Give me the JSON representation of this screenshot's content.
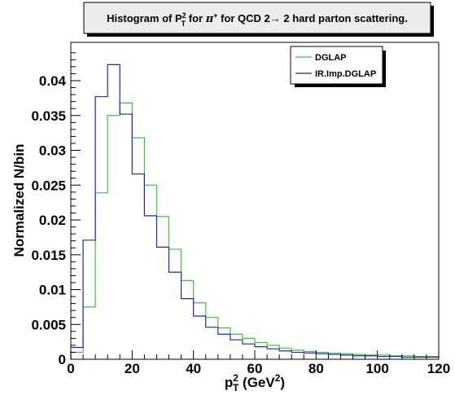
{
  "chart_data": {
    "type": "histogram",
    "title": {
      "prefix": "Histogram of P",
      "sup": "2",
      "sub": "T",
      "middle": " for ",
      "particle": "π",
      "particle_sup": "+",
      "suffix": " for QCD 2→ 2 hard parton scattering."
    },
    "xlabel": {
      "base": "p",
      "sup": "2",
      "sub": "T",
      "units": " (GeV",
      "units_sup": "2",
      "units_close": ")"
    },
    "ylabel": "Normalized N/bin",
    "xlim": [
      0,
      120
    ],
    "ylim": [
      0,
      0.0455
    ],
    "x_ticks": [
      "0",
      "20",
      "40",
      "60",
      "80",
      "100",
      "120"
    ],
    "x_tick_values": [
      0,
      20,
      40,
      60,
      80,
      100,
      120
    ],
    "y_ticks": [
      "0",
      "0.005",
      "0.01",
      "0.015",
      "0.02",
      "0.025",
      "0.03",
      "0.035",
      "0.04"
    ],
    "y_tick_values": [
      0,
      0.005,
      0.01,
      0.015,
      0.02,
      0.025,
      0.03,
      0.035,
      0.04
    ],
    "bin_edges": [
      0,
      4,
      8,
      12,
      16,
      20,
      24,
      28,
      32,
      36,
      40,
      44,
      48,
      52,
      56,
      60,
      64,
      68,
      72,
      76,
      80,
      84,
      88,
      92,
      96,
      100,
      104,
      108,
      112,
      116,
      120
    ],
    "series": [
      {
        "name": "DGLAP",
        "color": "#33cc33",
        "values": [
          0.001,
          0.0075,
          0.0239,
          0.035,
          0.0368,
          0.0318,
          0.025,
          0.0205,
          0.0158,
          0.0113,
          0.0081,
          0.006,
          0.0045,
          0.0036,
          0.003,
          0.0024,
          0.002,
          0.0016,
          0.0013,
          0.0011,
          0.001,
          0.0009,
          0.0008,
          0.0007,
          0.0006,
          0.0006,
          0.0005,
          0.0005,
          0.0004,
          0.0004
        ]
      },
      {
        "name": "IR.Imp.DGLAP",
        "color": "#2222cc",
        "values": [
          0.0017,
          0.0171,
          0.0377,
          0.0423,
          0.0352,
          0.0266,
          0.0206,
          0.0161,
          0.0125,
          0.0087,
          0.0062,
          0.0046,
          0.0036,
          0.0028,
          0.0022,
          0.0018,
          0.0015,
          0.0012,
          0.001,
          0.0009,
          0.0008,
          0.0007,
          0.0006,
          0.0005,
          0.0005,
          0.0004,
          0.0004,
          0.0003,
          0.0003,
          0.0003
        ]
      }
    ],
    "legend_position": "top-right",
    "grid": false
  }
}
